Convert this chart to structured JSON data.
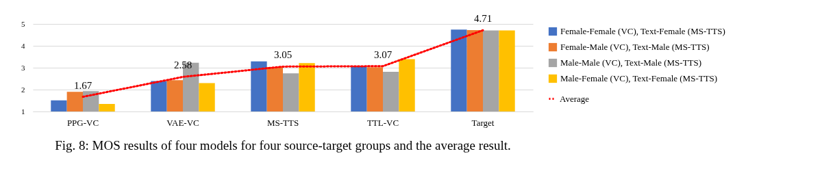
{
  "chart_data": {
    "type": "bar",
    "categories": [
      "PPG-VC",
      "VAE-VC",
      "MS-TTS",
      "TTL-VC",
      "Target"
    ],
    "series": [
      {
        "name": "Female-Female (VC), Text-Female (MS-TTS)",
        "color": "#4472c4",
        "values": [
          1.51,
          2.39,
          3.29,
          3.08,
          4.74
        ]
      },
      {
        "name": "Female-Male (VC), Text-Male (MS-TTS)",
        "color": "#ed7d31",
        "values": [
          1.9,
          2.43,
          3.03,
          3.02,
          4.72
        ]
      },
      {
        "name": "Male-Male (VC), Text-Male (MS-TTS)",
        "color": "#a5a5a5",
        "values": [
          1.93,
          3.23,
          2.74,
          2.81,
          4.7
        ]
      },
      {
        "name": "Male-Female (VC), Text-Female (MS-TTS)",
        "color": "#ffc000",
        "values": [
          1.34,
          2.3,
          3.21,
          3.39,
          4.7
        ]
      },
      {
        "name": "Average",
        "type": "line",
        "color": "#ff0000",
        "line_style": "dotted",
        "values": [
          1.67,
          2.58,
          3.05,
          3.07,
          4.71
        ],
        "value_labels": [
          "1.67",
          "2.58",
          "3.05",
          "3.07",
          "4.71"
        ]
      }
    ],
    "ylim": [
      1,
      5
    ],
    "yticks": [
      1,
      2,
      3,
      4,
      5
    ],
    "grid": "y",
    "legend": "right",
    "annotations": [
      "Fig. 8: MOS results of four models for four source-target groups and the average result."
    ]
  }
}
